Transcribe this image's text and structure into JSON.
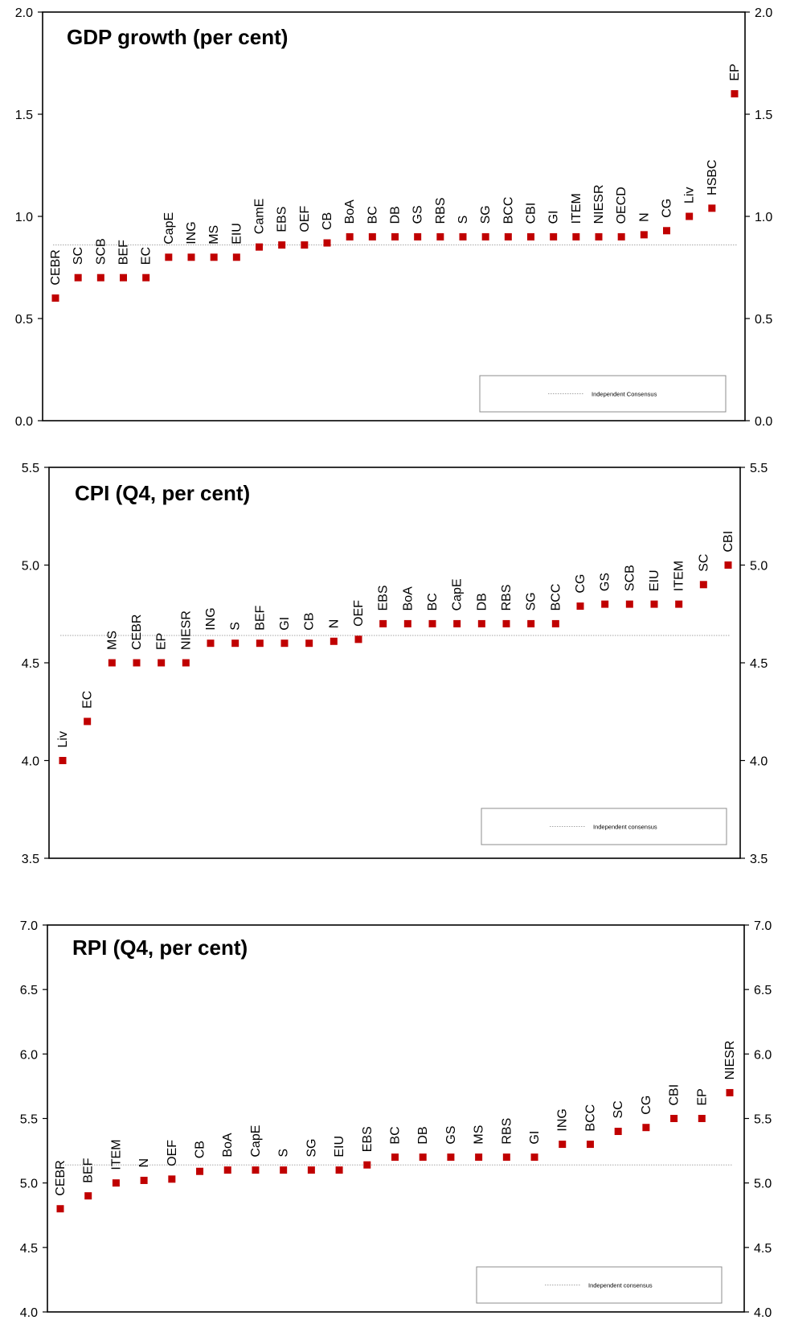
{
  "chart_data": [
    {
      "type": "scatter",
      "title": "GDP growth (per cent)",
      "ylim": [
        0.0,
        2.0
      ],
      "yticks": [
        "0.0",
        "0.5",
        "1.0",
        "1.5",
        "2.0"
      ],
      "grid": false,
      "legend_position": "bottom-right",
      "consensus": {
        "name": "Independent Consensus",
        "value": 0.86
      },
      "marker_color": "#c00000",
      "consensus_color": "#a6a6a6",
      "points": [
        {
          "label": "CEBR",
          "value": 0.6
        },
        {
          "label": "SC",
          "value": 0.7
        },
        {
          "label": "SCB",
          "value": 0.7
        },
        {
          "label": "BEF",
          "value": 0.7
        },
        {
          "label": "EC",
          "value": 0.7
        },
        {
          "label": "CapE",
          "value": 0.8
        },
        {
          "label": "ING",
          "value": 0.8
        },
        {
          "label": "MS",
          "value": 0.8
        },
        {
          "label": "EIU",
          "value": 0.8
        },
        {
          "label": "CamE",
          "value": 0.85
        },
        {
          "label": "EBS",
          "value": 0.86
        },
        {
          "label": "OEF",
          "value": 0.86
        },
        {
          "label": "CB",
          "value": 0.87
        },
        {
          "label": "BoA",
          "value": 0.9
        },
        {
          "label": "BC",
          "value": 0.9
        },
        {
          "label": "DB",
          "value": 0.9
        },
        {
          "label": "GS",
          "value": 0.9
        },
        {
          "label": "RBS",
          "value": 0.9
        },
        {
          "label": "S",
          "value": 0.9
        },
        {
          "label": "SG",
          "value": 0.9
        },
        {
          "label": "BCC",
          "value": 0.9
        },
        {
          "label": "CBI",
          "value": 0.9
        },
        {
          "label": "GI",
          "value": 0.9
        },
        {
          "label": "ITEM",
          "value": 0.9
        },
        {
          "label": "NIESR",
          "value": 0.9
        },
        {
          "label": "OECD",
          "value": 0.9
        },
        {
          "label": "N",
          "value": 0.91
        },
        {
          "label": "CG",
          "value": 0.93
        },
        {
          "label": "Liv",
          "value": 1.0
        },
        {
          "label": "HSBC",
          "value": 1.04
        },
        {
          "label": "EP",
          "value": 1.6
        }
      ]
    },
    {
      "type": "scatter",
      "title": "CPI (Q4, per cent)",
      "ylim": [
        3.5,
        5.5
      ],
      "yticks": [
        "3.5",
        "4.0",
        "4.5",
        "5.0",
        "5.5"
      ],
      "grid": false,
      "legend_position": "bottom-right",
      "consensus": {
        "name": "Independent consensus",
        "value": 4.64
      },
      "marker_color": "#c00000",
      "consensus_color": "#a6a6a6",
      "points": [
        {
          "label": "Liv",
          "value": 4.0
        },
        {
          "label": "EC",
          "value": 4.2
        },
        {
          "label": "MS",
          "value": 4.5
        },
        {
          "label": "CEBR",
          "value": 4.5
        },
        {
          "label": "EP",
          "value": 4.5
        },
        {
          "label": "NIESR",
          "value": 4.5
        },
        {
          "label": "ING",
          "value": 4.6
        },
        {
          "label": "S",
          "value": 4.6
        },
        {
          "label": "BEF",
          "value": 4.6
        },
        {
          "label": "GI",
          "value": 4.6
        },
        {
          "label": "CB",
          "value": 4.6
        },
        {
          "label": "N",
          "value": 4.61
        },
        {
          "label": "OEF",
          "value": 4.62
        },
        {
          "label": "EBS",
          "value": 4.7
        },
        {
          "label": "BoA",
          "value": 4.7
        },
        {
          "label": "BC",
          "value": 4.7
        },
        {
          "label": "CapE",
          "value": 4.7
        },
        {
          "label": "DB",
          "value": 4.7
        },
        {
          "label": "RBS",
          "value": 4.7
        },
        {
          "label": "SG",
          "value": 4.7
        },
        {
          "label": "BCC",
          "value": 4.7
        },
        {
          "label": "CG",
          "value": 4.79
        },
        {
          "label": "GS",
          "value": 4.8
        },
        {
          "label": "SCB",
          "value": 4.8
        },
        {
          "label": "EIU",
          "value": 4.8
        },
        {
          "label": "ITEM",
          "value": 4.8
        },
        {
          "label": "SC",
          "value": 4.9
        },
        {
          "label": "CBI",
          "value": 5.0
        }
      ]
    },
    {
      "type": "scatter",
      "title": "RPI (Q4, per cent)",
      "ylim": [
        4.0,
        7.0
      ],
      "yticks": [
        "4.0",
        "4.5",
        "5.0",
        "5.5",
        "6.0",
        "6.5",
        "7.0"
      ],
      "grid": false,
      "legend_position": "bottom-right",
      "consensus": {
        "name": "Independent consensus",
        "value": 5.14
      },
      "marker_color": "#c00000",
      "consensus_color": "#a6a6a6",
      "points": [
        {
          "label": "CEBR",
          "value": 4.8
        },
        {
          "label": "BEF",
          "value": 4.9
        },
        {
          "label": "ITEM",
          "value": 5.0
        },
        {
          "label": "N",
          "value": 5.02
        },
        {
          "label": "OEF",
          "value": 5.03
        },
        {
          "label": "CB",
          "value": 5.09
        },
        {
          "label": "BoA",
          "value": 5.1
        },
        {
          "label": "CapE",
          "value": 5.1
        },
        {
          "label": "S",
          "value": 5.1
        },
        {
          "label": "SG",
          "value": 5.1
        },
        {
          "label": "EIU",
          "value": 5.1
        },
        {
          "label": "EBS",
          "value": 5.14
        },
        {
          "label": "BC",
          "value": 5.2
        },
        {
          "label": "DB",
          "value": 5.2
        },
        {
          "label": "GS",
          "value": 5.2
        },
        {
          "label": "MS",
          "value": 5.2
        },
        {
          "label": "RBS",
          "value": 5.2
        },
        {
          "label": "GI",
          "value": 5.2
        },
        {
          "label": "ING",
          "value": 5.3
        },
        {
          "label": "BCC",
          "value": 5.3
        },
        {
          "label": "SC",
          "value": 5.4
        },
        {
          "label": "CG",
          "value": 5.43
        },
        {
          "label": "CBI",
          "value": 5.5
        },
        {
          "label": "EP",
          "value": 5.5
        },
        {
          "label": "NIESR",
          "value": 5.7
        }
      ]
    }
  ]
}
